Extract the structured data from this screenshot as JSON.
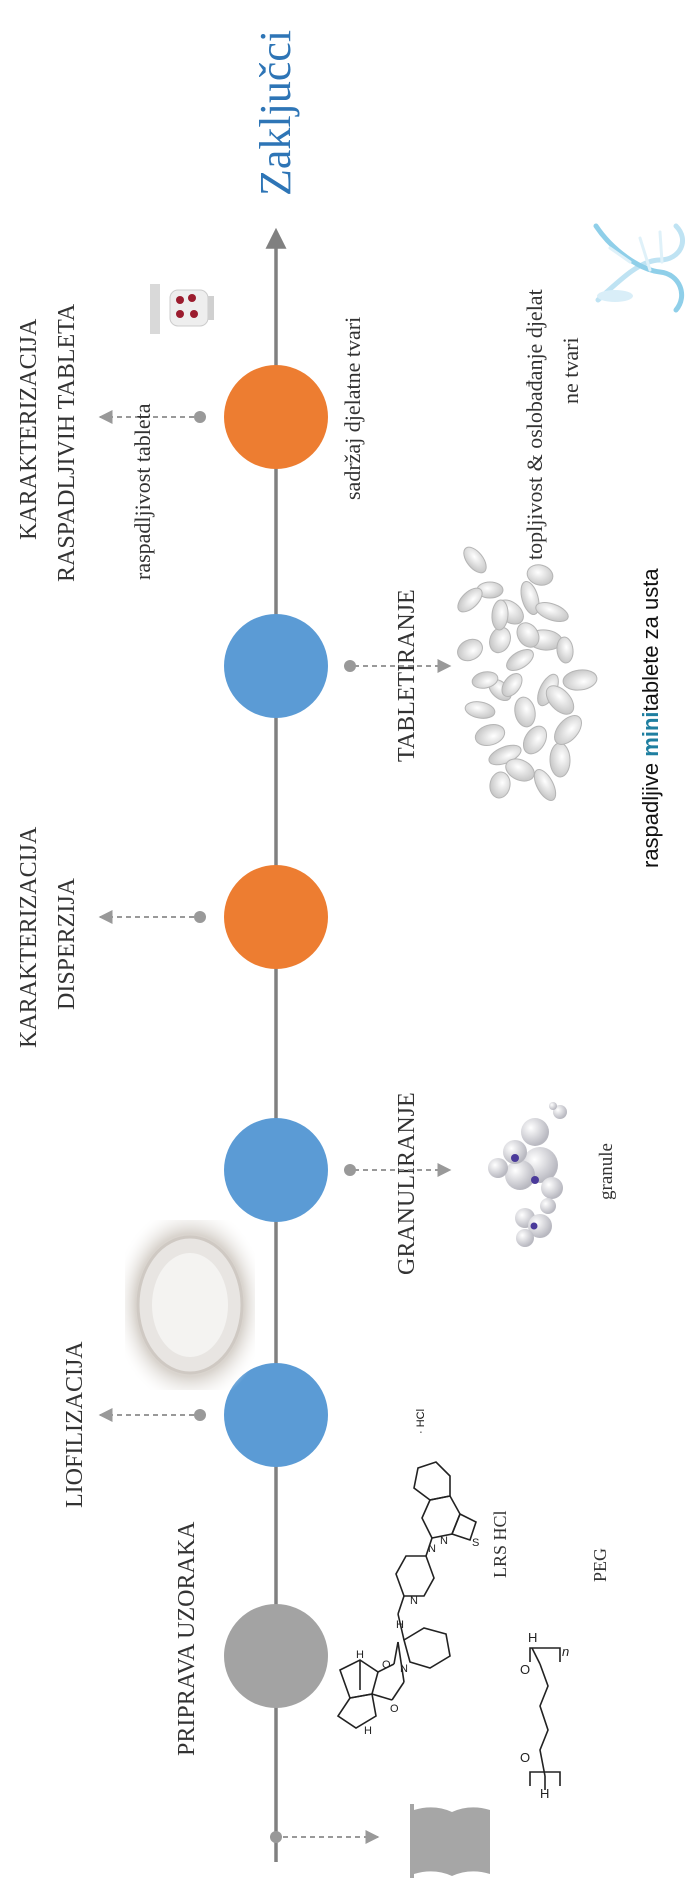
{
  "colors": {
    "timeline": "#808080",
    "arrow": "#999999",
    "circle_gray": "#a3a3a3",
    "circle_blue": "#5b9bd5",
    "circle_orange": "#ed7d31",
    "title_blue": "#2e75b6",
    "accent_teal": "#1f7fa0",
    "text": "#333333"
  },
  "title": "Zaključci",
  "steps": [
    {
      "id": "priprava",
      "label": "PRIPRAVA UZORAKA",
      "color": "gray"
    },
    {
      "id": "liofilizacija",
      "label": "LIOFILIZACIJA",
      "color": "blue"
    },
    {
      "id": "granuliranje",
      "label": "GRANULIRANJE",
      "color": "blue"
    },
    {
      "id": "karakterizacija-disperzija",
      "label_lines": [
        "KARAKTERIZACIJA",
        "DISPERZIJA"
      ],
      "color": "orange"
    },
    {
      "id": "tabletiranje",
      "label": "TABLETIRANJE",
      "color": "blue"
    },
    {
      "id": "karakterizacija-tableta",
      "label_lines": [
        "KARAKTERIZACIJA",
        "RASPADLJIVIH TABLETA"
      ],
      "color": "orange"
    }
  ],
  "notes": {
    "lrs": "LRS HCl",
    "peg": "PEG",
    "hcl": "· HCl",
    "granule": "granule",
    "raspadljivost": "raspadljivost tableta",
    "sadrzaj": "sadržaj djelatne tvari",
    "topljivost_lines": [
      "topljivost & oslobađanje djelat",
      "ne tvari"
    ]
  },
  "product": {
    "prefix": "raspadljive ",
    "highlight": "mini",
    "suffix": "tablete za usta"
  },
  "icons": {
    "book": "open-book-icon",
    "molecule": "lurasidone-structure-icon",
    "peg": "peg-structure-icon",
    "lyophilizate": "lyophilizate-photo",
    "granules": "granule-molecule-icon",
    "tablets": "tablets-pile-icon",
    "tester": "disintegration-tester-icon",
    "dna": "dna-helix-icon"
  }
}
